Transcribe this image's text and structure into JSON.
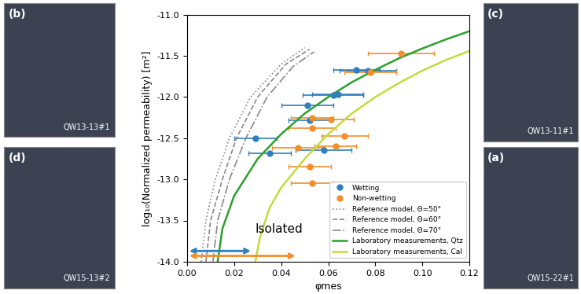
{
  "chart_data": {
    "type": "scatter",
    "x_label": "φmes",
    "y_label": "log₁₀(Normalized permeability) [m²]",
    "xlim": [
      0.0,
      0.12
    ],
    "ylim": [
      -14.0,
      -11.0
    ],
    "xticks": [
      {
        "value": 0.0,
        "label": "0.00"
      },
      {
        "value": 0.02,
        "label": "0.02"
      },
      {
        "value": 0.04,
        "label": "0.04"
      },
      {
        "value": 0.06,
        "label": "0.06"
      },
      {
        "value": 0.08,
        "label": "0.08"
      },
      {
        "value": 0.1,
        "label": "0.10"
      },
      {
        "value": 0.12,
        "label": "0.12"
      }
    ],
    "yticks": [
      -14.0,
      -13.5,
      -13.0,
      -12.5,
      -12.0,
      -11.5,
      -11.0
    ],
    "grid": false,
    "legend": "lower right",
    "series": [
      {
        "name": "Wetting",
        "type": "scatter",
        "color": "#2f7fbf",
        "marker": "o",
        "x": [
          0.072,
          0.077,
          0.064,
          0.062,
          0.051,
          0.052,
          0.029,
          0.058,
          0.035
        ],
        "values": [
          -11.67,
          -11.68,
          -11.97,
          -11.98,
          -12.1,
          -12.28,
          -12.5,
          -12.65,
          -12.68
        ],
        "xerr": [
          0.01,
          0.012,
          0.011,
          0.013,
          0.011,
          0.009,
          0.009,
          0.012,
          0.009
        ]
      },
      {
        "name": "Non-wetting",
        "type": "scatter",
        "color": "#f28e2b",
        "marker": "o",
        "x": [
          0.091,
          0.078,
          0.053,
          0.061,
          0.053,
          0.067,
          0.063,
          0.047,
          0.052,
          0.053
        ],
        "values": [
          -11.47,
          -11.7,
          -12.25,
          -12.27,
          -12.38,
          -12.47,
          -12.6,
          -12.62,
          -12.85,
          -13.05
        ],
        "xerr": [
          0.014,
          0.011,
          0.009,
          0.01,
          0.01,
          0.01,
          0.009,
          0.011,
          0.009,
          0.009
        ]
      },
      {
        "name": "Reference model, Θ=50°",
        "type": "line",
        "color": "#888888",
        "line_style": "dotted",
        "x": [
          0.006,
          0.008,
          0.012,
          0.018,
          0.027,
          0.04,
          0.05
        ],
        "values": [
          -14.0,
          -13.5,
          -13.0,
          -12.5,
          -12.0,
          -11.6,
          -11.4
        ]
      },
      {
        "name": "Reference model, Θ=60°",
        "type": "line",
        "color": "#888888",
        "line_style": "dashed",
        "x": [
          0.008,
          0.01,
          0.015,
          0.021,
          0.03,
          0.042,
          0.052
        ],
        "values": [
          -14.0,
          -13.5,
          -13.0,
          -12.5,
          -12.0,
          -11.6,
          -11.42
        ]
      },
      {
        "name": "Reference model, Θ=70°",
        "type": "line",
        "color": "#888888",
        "line_style": "dashdot",
        "x": [
          0.011,
          0.013,
          0.018,
          0.025,
          0.034,
          0.045,
          0.054
        ],
        "values": [
          -14.0,
          -13.5,
          -13.0,
          -12.5,
          -12.0,
          -11.63,
          -11.45
        ]
      },
      {
        "name": "Laboratory measurements, Qtz",
        "type": "line",
        "color": "#2ca02c",
        "line_style": "solid",
        "x": [
          0.013,
          0.015,
          0.02,
          0.03,
          0.04,
          0.05,
          0.06,
          0.07,
          0.08,
          0.09,
          0.1,
          0.11,
          0.12
        ],
        "values": [
          -14.0,
          -13.6,
          -13.2,
          -12.75,
          -12.45,
          -12.2,
          -12.0,
          -11.82,
          -11.67,
          -11.53,
          -11.41,
          -11.3,
          -11.2
        ]
      },
      {
        "name": "Laboratory measurements, Cal",
        "type": "line",
        "color": "#c2dc3c",
        "line_style": "solid",
        "x": [
          0.029,
          0.031,
          0.035,
          0.04,
          0.05,
          0.06,
          0.07,
          0.08,
          0.09,
          0.1,
          0.11,
          0.12
        ],
        "values": [
          -14.0,
          -13.7,
          -13.35,
          -13.1,
          -12.75,
          -12.45,
          -12.2,
          -12.0,
          -11.83,
          -11.68,
          -11.55,
          -11.44
        ]
      }
    ],
    "isolated_ranges": [
      {
        "series": "Wetting",
        "x": [
          0.0,
          0.028
        ],
        "y": -13.87
      },
      {
        "series": "Non-wetting",
        "x": [
          0.0,
          0.047
        ],
        "y": -13.93
      }
    ],
    "annotations": [
      {
        "text": "Isolated",
        "x": 0.029,
        "y": -13.65
      }
    ]
  },
  "panels": [
    {
      "label": "(b)",
      "sample": "QW13-13#1"
    },
    {
      "label": "(d)",
      "sample": "QW15-13#2"
    },
    {
      "label": "(c)",
      "sample": "QW13-11#1"
    },
    {
      "label": "(a)",
      "sample": "QW15-22#1"
    }
  ]
}
